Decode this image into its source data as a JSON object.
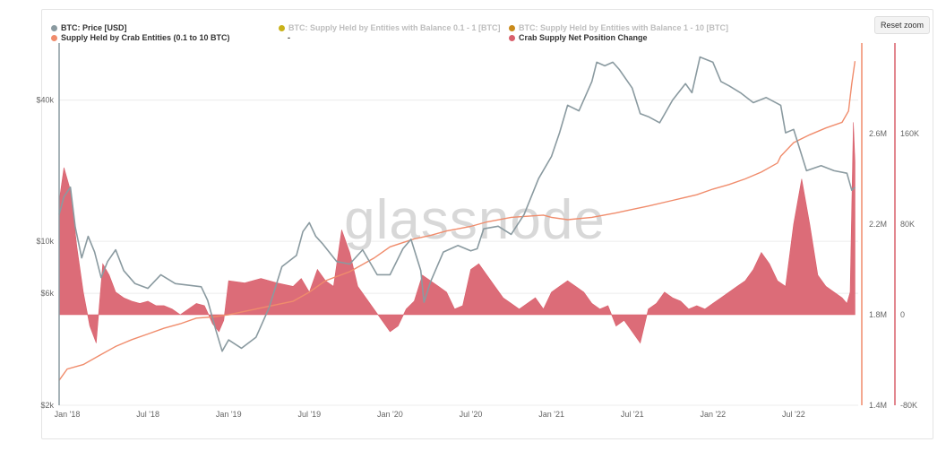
{
  "reset_zoom": "Reset zoom",
  "watermark": "glassnode",
  "legend": [
    {
      "label": "BTC: Price [USD]",
      "color": "#8a9aa0",
      "dim": false
    },
    {
      "label": "Supply Held by Crab Entities (0.1 to 10 BTC)",
      "color": "#f08c6c",
      "dim": false
    },
    {
      "label": "BTC: Supply Held by Entities with Balance 0.1 - 1 [BTC]",
      "color": "#c9b21a",
      "dim": true
    },
    {
      "label": "-",
      "color": "",
      "dim": false
    },
    {
      "label": "BTC: Supply Held by Entities with Balance 1 - 10 [BTC]",
      "color": "#c98a1a",
      "dim": true
    },
    {
      "label": "Crab Supply Net Position Change",
      "color": "#d9606c",
      "dim": false
    }
  ],
  "chart_data": {
    "type": "line",
    "title": "",
    "x_ticks": [
      "Jan '18",
      "Jul '18",
      "Jan '19",
      "Jul '19",
      "Jan '20",
      "Jul '20",
      "Jan '21",
      "Jul '21",
      "Jan '22",
      "Jul '22"
    ],
    "x_range": [
      2017.95,
      2022.9
    ],
    "y_axes": {
      "price": {
        "scale": "log",
        "range": [
          2000,
          70000
        ],
        "ticks": [
          "$2k",
          "$6k",
          "$10k",
          "$40k"
        ],
        "tick_values": [
          2000,
          6000,
          10000,
          40000
        ]
      },
      "supply": {
        "scale": "linear",
        "range": [
          1400000,
          3000000
        ],
        "ticks": [
          "1.4M",
          "1.8M",
          "2.2M",
          "2.6M"
        ],
        "tick_values": [
          1400000,
          1800000,
          2200000,
          2600000
        ]
      },
      "net_change": {
        "scale": "linear",
        "range": [
          -80000,
          240000
        ],
        "ticks": [
          "-80K",
          "0",
          "80K",
          "160K"
        ],
        "tick_values": [
          -80000,
          0,
          80000,
          160000
        ]
      }
    },
    "series": [
      {
        "name": "BTC: Price [USD]",
        "axis": "price",
        "color": "#8a9aa0",
        "x": [
          2017.95,
          2017.98,
          2018.02,
          2018.05,
          2018.09,
          2018.13,
          2018.17,
          2018.21,
          2018.25,
          2018.3,
          2018.35,
          2018.42,
          2018.5,
          2018.58,
          2018.67,
          2018.75,
          2018.83,
          2018.87,
          2018.92,
          2018.96,
          2019.0,
          2019.08,
          2019.17,
          2019.25,
          2019.33,
          2019.42,
          2019.46,
          2019.5,
          2019.54,
          2019.58,
          2019.67,
          2019.75,
          2019.83,
          2019.92,
          2020.0,
          2020.08,
          2020.13,
          2020.19,
          2020.21,
          2020.25,
          2020.33,
          2020.42,
          2020.5,
          2020.54,
          2020.58,
          2020.67,
          2020.75,
          2020.83,
          2020.92,
          2021.0,
          2021.05,
          2021.1,
          2021.17,
          2021.25,
          2021.28,
          2021.33,
          2021.38,
          2021.42,
          2021.5,
          2021.55,
          2021.6,
          2021.67,
          2021.75,
          2021.83,
          2021.87,
          2021.92,
          2022.0,
          2022.05,
          2022.1,
          2022.17,
          2022.25,
          2022.33,
          2022.42,
          2022.45,
          2022.5,
          2022.58,
          2022.67,
          2022.75,
          2022.83,
          2022.86,
          2022.88
        ],
        "values": [
          13000,
          15500,
          17000,
          11500,
          8500,
          10500,
          9000,
          7000,
          8200,
          9200,
          7500,
          6600,
          6300,
          7200,
          6600,
          6500,
          6400,
          5600,
          4200,
          3400,
          3800,
          3500,
          3900,
          5200,
          7800,
          8700,
          11000,
          12000,
          10500,
          9800,
          8200,
          8000,
          9200,
          7200,
          7200,
          9300,
          10200,
          7500,
          5500,
          6700,
          9000,
          9600,
          9100,
          9300,
          11300,
          11600,
          10700,
          13000,
          18500,
          23000,
          29000,
          38000,
          36000,
          48000,
          58000,
          56000,
          58000,
          54000,
          45000,
          35000,
          34000,
          32000,
          40000,
          47000,
          43000,
          61000,
          58000,
          48000,
          46000,
          43000,
          39000,
          41000,
          38000,
          29000,
          30000,
          20000,
          21000,
          20000,
          19500,
          16500,
          17000
        ]
      },
      {
        "name": "Supply Held by Crab Entities (0.1 to 10 BTC)",
        "axis": "supply",
        "color": "#f08c6c",
        "x": [
          2017.95,
          2018.0,
          2018.1,
          2018.2,
          2018.3,
          2018.4,
          2018.5,
          2018.6,
          2018.7,
          2018.8,
          2018.9,
          2019.0,
          2019.2,
          2019.4,
          2019.5,
          2019.6,
          2019.75,
          2019.9,
          2020.0,
          2020.15,
          2020.25,
          2020.35,
          2020.5,
          2020.6,
          2020.75,
          2020.85,
          2020.95,
          2021.0,
          2021.1,
          2021.25,
          2021.4,
          2021.5,
          2021.6,
          2021.75,
          2021.9,
          2022.0,
          2022.1,
          2022.2,
          2022.3,
          2022.4,
          2022.42,
          2022.5,
          2022.6,
          2022.7,
          2022.8,
          2022.84,
          2022.86,
          2022.88
        ],
        "values": [
          1510000,
          1560000,
          1580000,
          1620000,
          1660000,
          1690000,
          1715000,
          1740000,
          1760000,
          1785000,
          1790000,
          1800000,
          1830000,
          1860000,
          1900000,
          1950000,
          1990000,
          2050000,
          2100000,
          2135000,
          2150000,
          2170000,
          2190000,
          2210000,
          2230000,
          2235000,
          2240000,
          2230000,
          2220000,
          2230000,
          2250000,
          2265000,
          2280000,
          2305000,
          2330000,
          2355000,
          2375000,
          2400000,
          2430000,
          2470000,
          2500000,
          2560000,
          2595000,
          2625000,
          2650000,
          2700000,
          2820000,
          2920000
        ]
      },
      {
        "name": "Crab Supply Net Position Change",
        "axis": "net_change",
        "color": "#d9606c",
        "style": "area",
        "x": [
          2017.95,
          2017.98,
          2018.02,
          2018.06,
          2018.1,
          2018.14,
          2018.18,
          2018.22,
          2018.26,
          2018.3,
          2018.35,
          2018.4,
          2018.45,
          2018.5,
          2018.55,
          2018.6,
          2018.65,
          2018.7,
          2018.75,
          2018.8,
          2018.85,
          2018.87,
          2018.9,
          2018.94,
          2018.97,
          2019.0,
          2019.1,
          2019.2,
          2019.3,
          2019.4,
          2019.45,
          2019.5,
          2019.55,
          2019.6,
          2019.65,
          2019.7,
          2019.75,
          2019.8,
          2019.85,
          2019.9,
          2020.0,
          2020.05,
          2020.1,
          2020.15,
          2020.2,
          2020.25,
          2020.3,
          2020.35,
          2020.4,
          2020.45,
          2020.5,
          2020.55,
          2020.6,
          2020.65,
          2020.7,
          2020.75,
          2020.8,
          2020.85,
          2020.9,
          2020.95,
          2021.0,
          2021.05,
          2021.1,
          2021.15,
          2021.2,
          2021.25,
          2021.3,
          2021.35,
          2021.4,
          2021.45,
          2021.5,
          2021.55,
          2021.6,
          2021.65,
          2021.7,
          2021.75,
          2021.8,
          2021.85,
          2021.9,
          2021.95,
          2022.0,
          2022.05,
          2022.1,
          2022.15,
          2022.2,
          2022.25,
          2022.3,
          2022.35,
          2022.4,
          2022.45,
          2022.5,
          2022.55,
          2022.6,
          2022.65,
          2022.7,
          2022.75,
          2022.8,
          2022.83,
          2022.85,
          2022.87,
          2022.88
        ],
        "values": [
          100000,
          130000,
          110000,
          60000,
          20000,
          -10000,
          -25000,
          45000,
          35000,
          20000,
          15000,
          12000,
          10000,
          12000,
          8000,
          8000,
          5000,
          0,
          5000,
          10000,
          8000,
          2000,
          -8000,
          -15000,
          -5000,
          30000,
          28000,
          32000,
          28000,
          25000,
          32000,
          20000,
          40000,
          30000,
          25000,
          75000,
          55000,
          25000,
          15000,
          5000,
          -15000,
          -10000,
          5000,
          12000,
          35000,
          30000,
          25000,
          20000,
          5000,
          8000,
          40000,
          45000,
          35000,
          25000,
          15000,
          10000,
          5000,
          10000,
          15000,
          5000,
          20000,
          25000,
          30000,
          25000,
          20000,
          10000,
          5000,
          8000,
          -10000,
          -5000,
          -15000,
          -25000,
          5000,
          10000,
          20000,
          15000,
          12000,
          5000,
          8000,
          5000,
          10000,
          15000,
          20000,
          25000,
          30000,
          40000,
          55000,
          45000,
          30000,
          25000,
          80000,
          120000,
          80000,
          35000,
          25000,
          20000,
          15000,
          10000,
          20000,
          170000,
          135000
        ]
      }
    ]
  }
}
